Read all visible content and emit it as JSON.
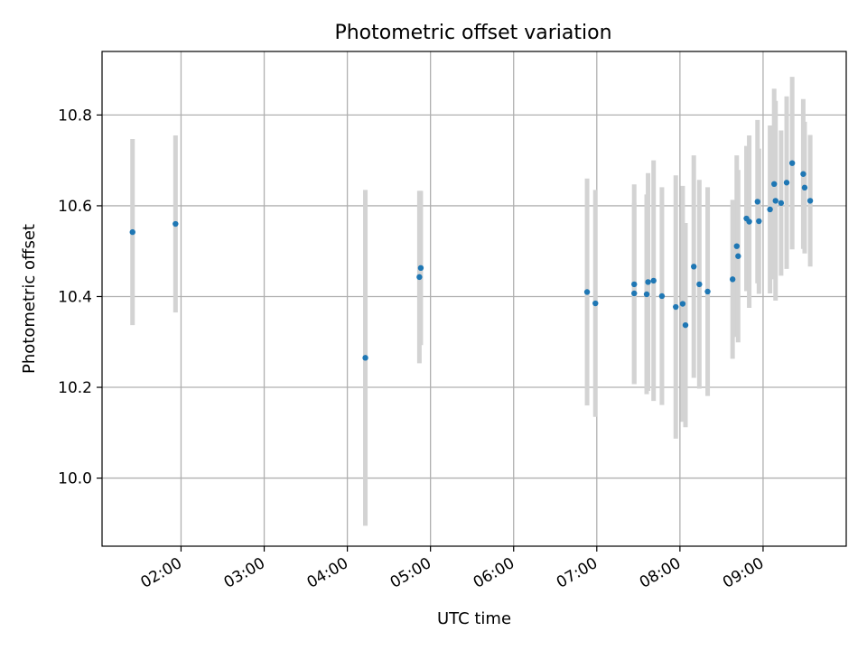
{
  "chart_data": {
    "type": "scatter",
    "title": "Photometric offset variation",
    "xlabel": "UTC time",
    "ylabel": "Photometric offset",
    "x_tick_labels": [
      "02:00",
      "03:00",
      "04:00",
      "05:00",
      "06:00",
      "07:00",
      "08:00",
      "09:00"
    ],
    "x_tick_hours": [
      2,
      3,
      4,
      5,
      6,
      7,
      8,
      9
    ],
    "y_ticks": [
      10.0,
      10.2,
      10.4,
      10.6,
      10.8
    ],
    "y_tick_labels": [
      "10.0",
      "10.2",
      "10.4",
      "10.6",
      "10.8"
    ],
    "xlim_hours": [
      1.05,
      10.0
    ],
    "ylim": [
      9.85,
      10.94
    ],
    "grid": true,
    "point_color": "#1f77b4",
    "errorbar_color": "#d3d3d3",
    "points": [
      {
        "t": "01:25",
        "y": 10.542,
        "err": 0.205
      },
      {
        "t": "01:56",
        "y": 10.56,
        "err": 0.195
      },
      {
        "t": "04:13",
        "y": 10.265,
        "err": 0.37
      },
      {
        "t": "04:52",
        "y": 10.443,
        "err": 0.19
      },
      {
        "t": "04:53",
        "y": 10.463,
        "err": 0.17
      },
      {
        "t": "06:53",
        "y": 10.41,
        "err": 0.25
      },
      {
        "t": "06:59",
        "y": 10.385,
        "err": 0.25
      },
      {
        "t": "07:27",
        "y": 10.407,
        "err": 0.2
      },
      {
        "t": "07:27",
        "y": 10.427,
        "err": 0.22
      },
      {
        "t": "07:36",
        "y": 10.405,
        "err": 0.22
      },
      {
        "t": "07:37",
        "y": 10.432,
        "err": 0.24
      },
      {
        "t": "07:41",
        "y": 10.435,
        "err": 0.265
      },
      {
        "t": "07:47",
        "y": 10.401,
        "err": 0.24
      },
      {
        "t": "07:57",
        "y": 10.377,
        "err": 0.29
      },
      {
        "t": "08:02",
        "y": 10.384,
        "err": 0.26
      },
      {
        "t": "08:04",
        "y": 10.337,
        "err": 0.225
      },
      {
        "t": "08:10",
        "y": 10.466,
        "err": 0.245
      },
      {
        "t": "08:14",
        "y": 10.427,
        "err": 0.23
      },
      {
        "t": "08:20",
        "y": 10.411,
        "err": 0.23
      },
      {
        "t": "08:38",
        "y": 10.438,
        "err": 0.175
      },
      {
        "t": "08:41",
        "y": 10.511,
        "err": 0.2
      },
      {
        "t": "08:42",
        "y": 10.489,
        "err": 0.19
      },
      {
        "t": "08:48",
        "y": 10.572,
        "err": 0.16
      },
      {
        "t": "08:50",
        "y": 10.565,
        "err": 0.19
      },
      {
        "t": "08:56",
        "y": 10.609,
        "err": 0.18
      },
      {
        "t": "08:57",
        "y": 10.566,
        "err": 0.16
      },
      {
        "t": "09:05",
        "y": 10.592,
        "err": 0.185
      },
      {
        "t": "09:08",
        "y": 10.648,
        "err": 0.21
      },
      {
        "t": "09:09",
        "y": 10.611,
        "err": 0.22
      },
      {
        "t": "09:13",
        "y": 10.606,
        "err": 0.16
      },
      {
        "t": "09:17",
        "y": 10.651,
        "err": 0.19
      },
      {
        "t": "09:21",
        "y": 10.694,
        "err": 0.19
      },
      {
        "t": "09:29",
        "y": 10.67,
        "err": 0.165
      },
      {
        "t": "09:30",
        "y": 10.64,
        "err": 0.145
      },
      {
        "t": "09:34",
        "y": 10.611,
        "err": 0.145
      }
    ]
  }
}
